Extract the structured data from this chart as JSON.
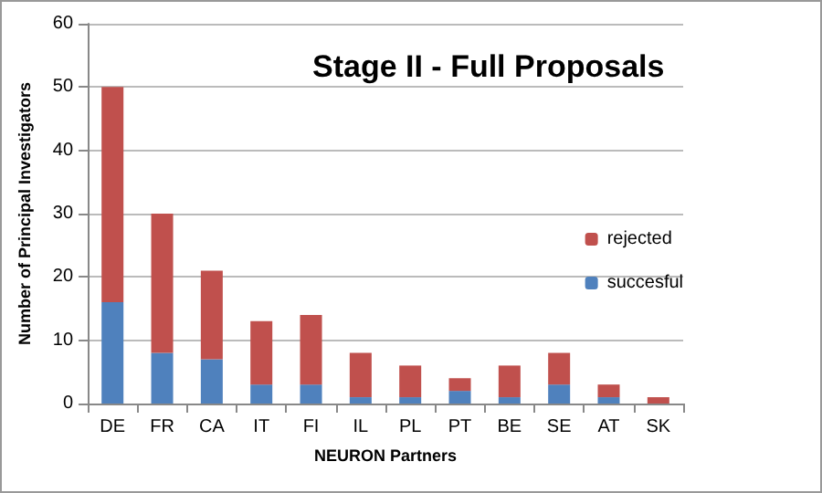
{
  "chart_data": {
    "type": "bar",
    "stacked": true,
    "title": "Stage II - Full Proposals",
    "xlabel": "NEURON Partners",
    "ylabel": "Number of Principal Investigators",
    "categories": [
      "DE",
      "FR",
      "CA",
      "IT",
      "FI",
      "IL",
      "PL",
      "PT",
      "BE",
      "SE",
      "AT",
      "SK"
    ],
    "series": [
      {
        "name": "succesful",
        "color": "#4f81bd",
        "values": [
          16,
          8,
          7,
          3,
          3,
          1,
          1,
          2,
          1,
          3,
          1,
          0
        ]
      },
      {
        "name": "rejected",
        "color": "#c0504d",
        "values": [
          34,
          22,
          14,
          10,
          11,
          7,
          5,
          2,
          5,
          5,
          2,
          1
        ]
      }
    ],
    "ylim": [
      0,
      60
    ],
    "yticks": [
      0,
      10,
      20,
      30,
      40,
      50,
      60
    ],
    "grid": "y",
    "legend": "right"
  }
}
